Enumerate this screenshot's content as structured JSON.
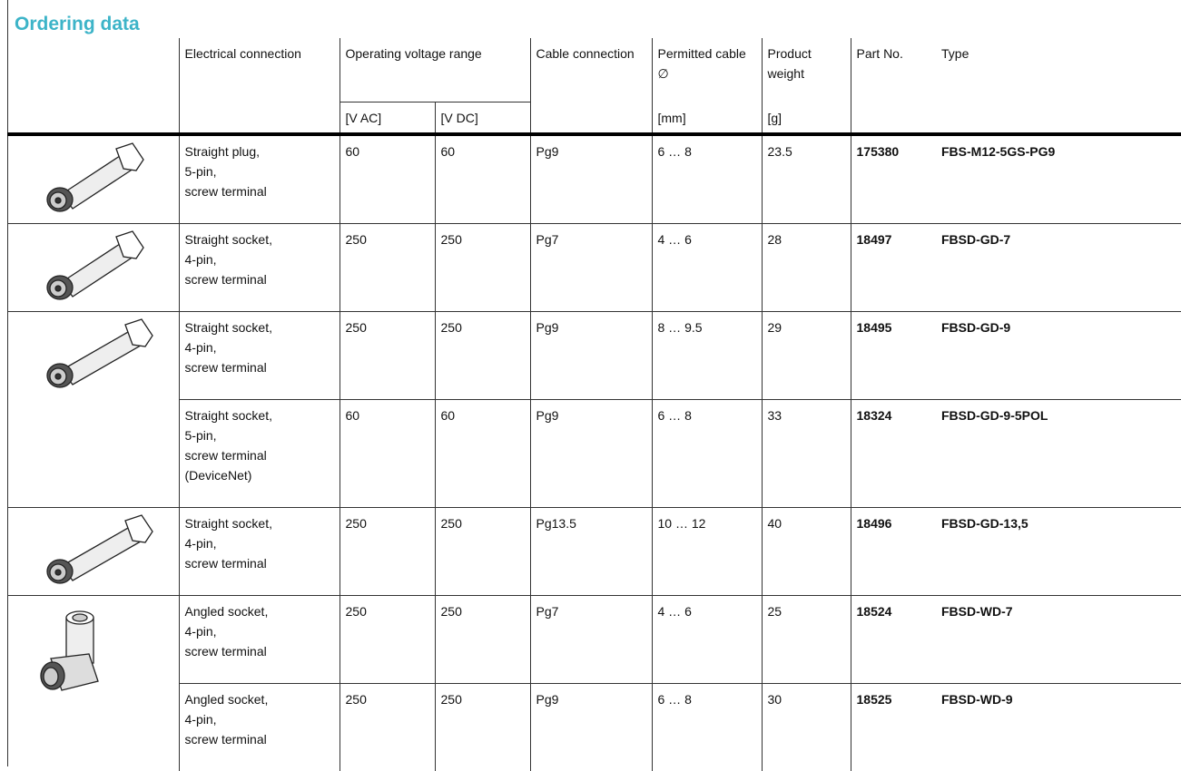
{
  "title": "Ordering data",
  "table": {
    "headers": {
      "electrical_connection": "Electrical connection",
      "operating_voltage_range": "Operating voltage range",
      "v_ac": "[V AC]",
      "v_dc": "[V DC]",
      "cable_connection": "Cable connection",
      "permitted_cable": "Permitted cable ∅",
      "permitted_cable_unit": "[mm]",
      "product_weight": "Product weight",
      "product_weight_unit": "[g]",
      "part_no": "Part No.",
      "type": "Type"
    },
    "rows": [
      {
        "electrical_connection": [
          "Straight plug,",
          "5-pin,",
          "screw terminal"
        ],
        "v_ac": 60,
        "v_dc": 60,
        "cable_connection": "Pg9",
        "permitted_cable": "6 … 8",
        "product_weight": 23.5,
        "part_no": 175380,
        "type": "FBS-M12-5GS-PG9"
      },
      {
        "electrical_connection": [
          "Straight socket,",
          "4-pin,",
          "screw terminal"
        ],
        "v_ac": 250,
        "v_dc": 250,
        "cable_connection": "Pg7",
        "permitted_cable": "4 … 6",
        "product_weight": 28,
        "part_no": 18497,
        "type": "FBSD-GD-7"
      },
      {
        "electrical_connection": [
          "Straight socket,",
          "4-pin,",
          "screw terminal"
        ],
        "v_ac": 250,
        "v_dc": 250,
        "cable_connection": "Pg9",
        "permitted_cable": "8 … 9.5",
        "product_weight": 29,
        "part_no": 18495,
        "type": "FBSD-GD-9"
      },
      {
        "electrical_connection": [
          "Straight socket,",
          "5-pin,",
          "screw terminal",
          "(DeviceNet)"
        ],
        "v_ac": 60,
        "v_dc": 60,
        "cable_connection": "Pg9",
        "permitted_cable": "6 … 8",
        "product_weight": 33,
        "part_no": 18324,
        "type": "FBSD-GD-9-5POL"
      },
      {
        "electrical_connection": [
          "Straight socket,",
          "4-pin,",
          "screw terminal"
        ],
        "v_ac": 250,
        "v_dc": 250,
        "cable_connection": "Pg13.5",
        "permitted_cable": "10 … 12",
        "product_weight": 40,
        "part_no": 18496,
        "type": "FBSD-GD-13,5"
      },
      {
        "electrical_connection": [
          "Angled socket,",
          "4-pin,",
          "screw terminal"
        ],
        "v_ac": 250,
        "v_dc": 250,
        "cable_connection": "Pg7",
        "permitted_cable": "4 … 6",
        "product_weight": 25,
        "part_no": 18524,
        "type": "FBSD-WD-7"
      },
      {
        "electrical_connection": [
          "Angled socket,",
          "4-pin,",
          "screw terminal"
        ],
        "v_ac": 250,
        "v_dc": 250,
        "cable_connection": "Pg9",
        "permitted_cable": "6 … 8",
        "product_weight": 30,
        "part_no": 18525,
        "type": "FBSD-WD-9"
      }
    ]
  }
}
